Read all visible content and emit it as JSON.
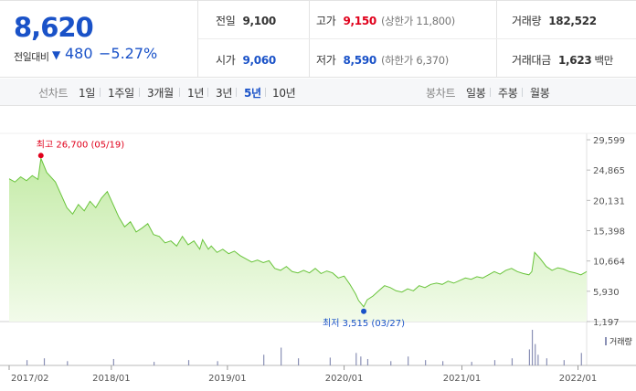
{
  "quote": {
    "price": "8,620",
    "change_label": "전일대비",
    "change_arrow": "▼",
    "change_value": "480",
    "change_pct": "−5.27%",
    "prev_close": {
      "label": "전일",
      "value": "9,100"
    },
    "open": {
      "label": "시가",
      "value": "9,060"
    },
    "high": {
      "label": "고가",
      "value": "9,150",
      "sub": "(상한가 11,800)"
    },
    "low": {
      "label": "저가",
      "value": "8,590",
      "sub": "(하한가 6,370)"
    },
    "volume": {
      "label": "거래량",
      "value": "182,522"
    },
    "amount": {
      "label": "거래대금",
      "value": "1,623",
      "unit": "백만"
    }
  },
  "toolbar": {
    "line_label": "선차트",
    "line_periods": [
      {
        "label": "1일",
        "active": false
      },
      {
        "label": "1주일",
        "active": false
      },
      {
        "label": "3개월",
        "active": false
      },
      {
        "label": "1년",
        "active": false
      },
      {
        "label": "3년",
        "active": false
      },
      {
        "label": "5년",
        "active": true
      },
      {
        "label": "10년",
        "active": false
      }
    ],
    "candle_label": "봉차트",
    "candle_periods": [
      {
        "label": "일봉"
      },
      {
        "label": "주봉"
      },
      {
        "label": "월봉"
      }
    ]
  },
  "chart_data": {
    "type": "area",
    "colors": {
      "line": "#69c43b",
      "fill_top": "#c4eba7",
      "fill_bottom": "#f2fbea",
      "high_marker": "#e0001b",
      "low_marker": "#1a52c8",
      "volume": "#8a90b5"
    },
    "y_ticks": [
      "29,599",
      "24,865",
      "20,131",
      "15,398",
      "10,664",
      "5,930",
      "1,197"
    ],
    "ylim": [
      1197,
      29599
    ],
    "x_ticks": [
      "2017/02",
      "2018/01",
      "2019/01",
      "2020/01",
      "2021/01",
      "2022/01"
    ],
    "x_tick_pos": [
      0.0,
      0.177,
      0.378,
      0.58,
      0.784,
      0.985
    ],
    "high_annotation": {
      "label": "최고 26,700 (05/19)",
      "x": 0.055,
      "value": 26700
    },
    "low_annotation": {
      "label": "최저 3,515 (03/27)",
      "x": 0.614,
      "value": 3515
    },
    "volume_label": "거래량",
    "series": [
      {
        "x": [
          0,
          0.01,
          0.02,
          0.03,
          0.04,
          0.05,
          0.055,
          0.065,
          0.08,
          0.09,
          0.1,
          0.11,
          0.12,
          0.13,
          0.14,
          0.15,
          0.16,
          0.17,
          0.18,
          0.19,
          0.2,
          0.21,
          0.22,
          0.23,
          0.24,
          0.25,
          0.26,
          0.27,
          0.28,
          0.29,
          0.3,
          0.31,
          0.32,
          0.33,
          0.335,
          0.345,
          0.35,
          0.36,
          0.37,
          0.38,
          0.39,
          0.4,
          0.41,
          0.42,
          0.43,
          0.44,
          0.45,
          0.46,
          0.47,
          0.48,
          0.49,
          0.5,
          0.51,
          0.52,
          0.53,
          0.54,
          0.55,
          0.56,
          0.57,
          0.58,
          0.59,
          0.6,
          0.605,
          0.614,
          0.62,
          0.63,
          0.64,
          0.65,
          0.66,
          0.67,
          0.68,
          0.69,
          0.7,
          0.71,
          0.72,
          0.73,
          0.74,
          0.75,
          0.76,
          0.77,
          0.78,
          0.79,
          0.8,
          0.81,
          0.82,
          0.83,
          0.84,
          0.85,
          0.86,
          0.87,
          0.88,
          0.89,
          0.9,
          0.905,
          0.91,
          0.92,
          0.93,
          0.94,
          0.95,
          0.96,
          0.97,
          0.98,
          0.99,
          1.0
        ],
        "values": [
          23500,
          23000,
          23800,
          23200,
          24000,
          23400,
          26700,
          24500,
          23000,
          21000,
          19000,
          18000,
          19500,
          18500,
          20000,
          19000,
          20500,
          21500,
          19500,
          17500,
          16000,
          16800,
          15200,
          15800,
          16500,
          14800,
          14500,
          13500,
          13800,
          13000,
          14500,
          13200,
          13800,
          12500,
          14000,
          12500,
          13000,
          12000,
          12500,
          11800,
          12200,
          11500,
          11000,
          10500,
          10800,
          10400,
          10700,
          9500,
          9200,
          9800,
          9000,
          8800,
          9200,
          8800,
          9500,
          8700,
          9100,
          8800,
          8000,
          8300,
          7000,
          5500,
          4500,
          3515,
          4600,
          5200,
          6000,
          6800,
          6500,
          6000,
          5800,
          6300,
          6000,
          6800,
          6500,
          7000,
          7200,
          7000,
          7500,
          7200,
          7600,
          8000,
          7800,
          8200,
          8000,
          8500,
          9000,
          8600,
          9200,
          9500,
          9000,
          8700,
          8500,
          9000,
          12000,
          11000,
          9800,
          9200,
          9600,
          9400,
          9000,
          8800,
          8500,
          9000
        ]
      }
    ],
    "volume": [
      {
        "x": 0.03,
        "v": 0.15
      },
      {
        "x": 0.06,
        "v": 0.2
      },
      {
        "x": 0.1,
        "v": 0.12
      },
      {
        "x": 0.18,
        "v": 0.18
      },
      {
        "x": 0.25,
        "v": 0.1
      },
      {
        "x": 0.31,
        "v": 0.15
      },
      {
        "x": 0.36,
        "v": 0.12
      },
      {
        "x": 0.44,
        "v": 0.3
      },
      {
        "x": 0.47,
        "v": 0.5
      },
      {
        "x": 0.5,
        "v": 0.2
      },
      {
        "x": 0.555,
        "v": 0.22
      },
      {
        "x": 0.6,
        "v": 0.35
      },
      {
        "x": 0.608,
        "v": 0.25
      },
      {
        "x": 0.62,
        "v": 0.18
      },
      {
        "x": 0.66,
        "v": 0.12
      },
      {
        "x": 0.69,
        "v": 0.25
      },
      {
        "x": 0.72,
        "v": 0.15
      },
      {
        "x": 0.75,
        "v": 0.12
      },
      {
        "x": 0.8,
        "v": 0.1
      },
      {
        "x": 0.84,
        "v": 0.15
      },
      {
        "x": 0.87,
        "v": 0.2
      },
      {
        "x": 0.9,
        "v": 0.45
      },
      {
        "x": 0.905,
        "v": 1.0
      },
      {
        "x": 0.91,
        "v": 0.6
      },
      {
        "x": 0.915,
        "v": 0.3
      },
      {
        "x": 0.93,
        "v": 0.2
      },
      {
        "x": 0.96,
        "v": 0.15
      },
      {
        "x": 0.99,
        "v": 0.35
      }
    ]
  }
}
